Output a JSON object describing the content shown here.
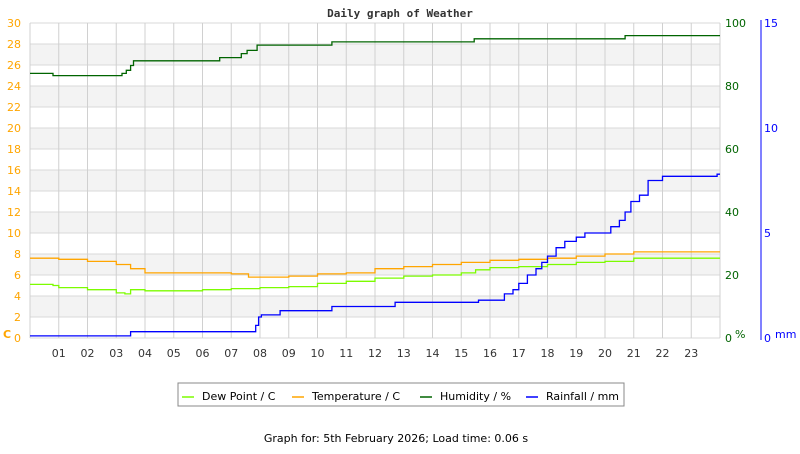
{
  "chart_data": {
    "type": "line",
    "title": "Daily graph of Weather",
    "footer": "Graph for: 5th February 2026; Load time: 0.06 s",
    "x_ticks": [
      "01",
      "02",
      "03",
      "04",
      "05",
      "06",
      "07",
      "08",
      "09",
      "10",
      "11",
      "12",
      "13",
      "14",
      "15",
      "16",
      "17",
      "18",
      "19",
      "20",
      "21",
      "22",
      "23"
    ],
    "xlim": [
      0,
      24
    ],
    "grid": true,
    "legend_placement": "bottom",
    "axes": {
      "left": {
        "unit": "C",
        "ylim": [
          0,
          30
        ],
        "ticks": [
          "0",
          "2",
          "4",
          "6",
          "8",
          "10",
          "12",
          "14",
          "16",
          "18",
          "20",
          "22",
          "24",
          "26",
          "28",
          "30"
        ],
        "color": "#ffa500"
      },
      "right1": {
        "unit": "%",
        "ylim": [
          0,
          100
        ],
        "ticks": [
          "0",
          "20",
          "40",
          "60",
          "80",
          "100"
        ],
        "color": "#006400"
      },
      "right2": {
        "unit": "mm",
        "ylim": [
          0,
          15
        ],
        "ticks": [
          "0",
          "5",
          "10",
          "15"
        ],
        "color": "#0000ff"
      }
    },
    "series": [
      {
        "name": "Dew Point / C",
        "axis": "left",
        "color": "#7cfc00",
        "x": [
          0,
          0.8,
          1,
          2,
          3,
          3.3,
          3.5,
          4,
          6,
          7,
          8,
          9,
          10,
          11,
          12,
          13,
          14,
          15,
          15.5,
          16,
          17,
          18,
          19,
          20,
          21,
          24
        ],
        "y": [
          5.1,
          5.0,
          4.8,
          4.6,
          4.3,
          4.2,
          4.6,
          4.5,
          4.6,
          4.7,
          4.8,
          4.9,
          5.2,
          5.4,
          5.7,
          5.9,
          6.0,
          6.2,
          6.5,
          6.7,
          6.8,
          7.0,
          7.2,
          7.3,
          7.6,
          7.6
        ]
      },
      {
        "name": "Temperature / C",
        "axis": "left",
        "color": "#ffa500",
        "x": [
          0,
          1,
          2,
          3,
          3.5,
          4,
          6.5,
          7,
          7.6,
          9,
          10,
          11,
          12,
          13,
          14,
          15,
          16,
          17,
          18,
          19,
          20,
          21,
          24
        ],
        "y": [
          7.6,
          7.5,
          7.3,
          7.0,
          6.6,
          6.2,
          6.2,
          6.1,
          5.8,
          5.9,
          6.1,
          6.2,
          6.6,
          6.8,
          7.0,
          7.2,
          7.4,
          7.5,
          7.6,
          7.8,
          8.0,
          8.2,
          8.2
        ]
      },
      {
        "name": "Humidity / %",
        "axis": "right1",
        "color": "#006400",
        "x": [
          0,
          0.8,
          3.2,
          3.35,
          3.5,
          3.6,
          6.6,
          7.35,
          7.55,
          7.9,
          10.5,
          15.45,
          20.7,
          24
        ],
        "y": [
          84,
          83.3,
          84,
          85,
          86.5,
          88,
          89,
          90.3,
          91.3,
          93,
          94,
          95,
          96,
          96
        ]
      },
      {
        "name": "Rainfall / mm",
        "axis": "right2",
        "color": "#0000ff",
        "x": [
          0,
          3.5,
          7.85,
          7.95,
          8.05,
          8.7,
          10.5,
          12.7,
          15.6,
          16.5,
          16.8,
          17.0,
          17.3,
          17.6,
          17.8,
          18.0,
          18.3,
          18.6,
          19.0,
          19.3,
          20.2,
          20.5,
          20.7,
          20.9,
          21.2,
          21.5,
          22.0,
          23.9,
          24
        ],
        "y": [
          0.1,
          0.3,
          0.6,
          1.0,
          1.1,
          1.3,
          1.5,
          1.7,
          1.8,
          2.1,
          2.3,
          2.6,
          3.0,
          3.3,
          3.6,
          3.9,
          4.3,
          4.6,
          4.8,
          5.0,
          5.3,
          5.6,
          6.0,
          6.5,
          6.8,
          7.5,
          7.7,
          7.8,
          7.8
        ]
      }
    ]
  }
}
